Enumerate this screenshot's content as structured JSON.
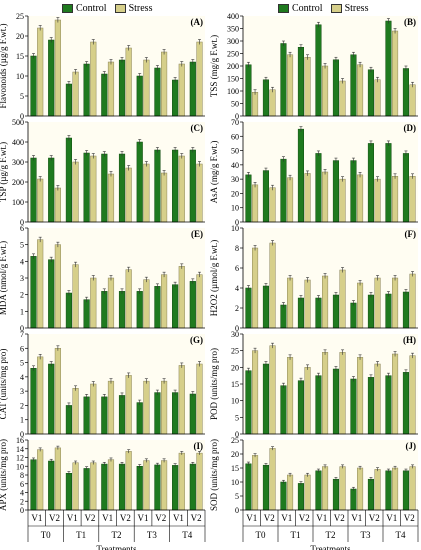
{
  "legend": {
    "items": [
      {
        "label": "Control",
        "color": "#1f7a1f"
      },
      {
        "label": "Stress",
        "color": "#d6cf8a"
      }
    ]
  },
  "groups": [
    "T0",
    "T1",
    "T2",
    "T3",
    "T4"
  ],
  "cultivars": [
    "V1",
    "V2"
  ],
  "xlabel": "Treatments",
  "chart_data": [
    {
      "type": "bar",
      "panel": "(A)",
      "ylabel": "Flavonoids (µg/g F.wt.)",
      "ylim": [
        0,
        25
      ],
      "yticks": [
        0,
        5,
        10,
        15,
        20,
        25
      ],
      "categories": [
        "T0-V1",
        "T0-V2",
        "T1-V1",
        "T1-V2",
        "T2-V1",
        "T2-V2",
        "T3-V1",
        "T3-V2",
        "T4-V1",
        "T4-V2"
      ],
      "series": [
        {
          "name": "Control",
          "values": [
            15,
            19,
            8,
            13,
            10.5,
            14,
            10,
            12,
            9,
            13.5
          ]
        },
        {
          "name": "Stress",
          "values": [
            22,
            24,
            11,
            18.5,
            13.5,
            17,
            14,
            16,
            13,
            18.5
          ]
        }
      ]
    },
    {
      "type": "bar",
      "panel": "(B)",
      "ylabel": "TSS (mg/g F.wt.)",
      "ylim": [
        0,
        400
      ],
      "yticks": [
        0,
        50,
        100,
        150,
        200,
        250,
        300,
        350,
        400
      ],
      "categories": [
        "T0-V1",
        "T0-V2",
        "T1-V1",
        "T1-V2",
        "T2-V1",
        "T2-V2",
        "T3-V1",
        "T3-V2",
        "T4-V1",
        "T4-V2"
      ],
      "series": [
        {
          "name": "Control",
          "values": [
            205,
            145,
            290,
            275,
            365,
            225,
            245,
            185,
            380,
            190
          ]
        },
        {
          "name": "Stress",
          "values": [
            95,
            105,
            245,
            235,
            200,
            140,
            205,
            145,
            340,
            125
          ]
        }
      ]
    },
    {
      "type": "bar",
      "panel": "(C)",
      "ylabel": "TSP (µg/g F.wt.)",
      "ylim": [
        0,
        500
      ],
      "yticks": [
        0,
        100,
        200,
        300,
        400,
        500
      ],
      "categories": [
        "T0-V1",
        "T0-V2",
        "T1-V1",
        "T1-V2",
        "T2-V1",
        "T2-V2",
        "T3-V1",
        "T3-V2",
        "T4-V1",
        "T4-V2"
      ],
      "series": [
        {
          "name": "Control",
          "values": [
            320,
            320,
            420,
            345,
            340,
            340,
            400,
            360,
            360,
            360
          ]
        },
        {
          "name": "Stress",
          "values": [
            215,
            170,
            300,
            330,
            240,
            270,
            290,
            245,
            330,
            290
          ]
        }
      ]
    },
    {
      "type": "bar",
      "panel": "(D)",
      "ylabel": "AsA (mg/g F.wt.)",
      "ylim": [
        0,
        70
      ],
      "yticks": [
        0,
        10,
        20,
        30,
        40,
        50,
        60,
        70
      ],
      "categories": [
        "T0-V1",
        "T0-V2",
        "T1-V1",
        "T1-V2",
        "T2-V1",
        "T2-V2",
        "T3-V1",
        "T3-V2",
        "T4-V1",
        "T4-V2"
      ],
      "series": [
        {
          "name": "Control",
          "values": [
            33,
            36,
            44,
            65,
            48,
            43,
            43,
            55,
            55,
            48
          ]
        },
        {
          "name": "Stress",
          "values": [
            26,
            24,
            31,
            34,
            35,
            30,
            33,
            30,
            32,
            32
          ]
        }
      ]
    },
    {
      "type": "bar",
      "panel": "(E)",
      "ylabel": "MDA (nmol/g F.wt.)",
      "ylim": [
        0,
        6
      ],
      "yticks": [
        0,
        1,
        2,
        3,
        4,
        5,
        6
      ],
      "categories": [
        "T0-V1",
        "T0-V2",
        "T1-V1",
        "T1-V2",
        "T2-V1",
        "T2-V2",
        "T3-V1",
        "T3-V2",
        "T4-V1",
        "T4-V2"
      ],
      "series": [
        {
          "name": "Control",
          "values": [
            4.3,
            4.1,
            2.1,
            1.7,
            2.2,
            2.2,
            2.2,
            2.5,
            2.6,
            2.8
          ]
        },
        {
          "name": "Stress",
          "values": [
            5.3,
            5.0,
            3.8,
            3.0,
            3.0,
            3.5,
            2.9,
            3.2,
            3.7,
            3.2
          ]
        }
      ]
    },
    {
      "type": "bar",
      "panel": "(F)",
      "ylabel": "H2O2 (µmol/g F.wt.)",
      "ylim": [
        0,
        10
      ],
      "yticks": [
        0,
        2,
        4,
        6,
        8,
        10
      ],
      "categories": [
        "T0-V1",
        "T0-V2",
        "T1-V1",
        "T1-V2",
        "T2-V1",
        "T2-V2",
        "T3-V1",
        "T3-V2",
        "T4-V1",
        "T4-V2"
      ],
      "series": [
        {
          "name": "Control",
          "values": [
            4,
            4.2,
            2.3,
            3,
            3,
            3.3,
            2.5,
            3.3,
            3.4,
            3.6
          ]
        },
        {
          "name": "Stress",
          "values": [
            8,
            8.5,
            5,
            4.8,
            5.2,
            5.8,
            4.5,
            5,
            5,
            5.4
          ]
        }
      ]
    },
    {
      "type": "bar",
      "panel": "(G)",
      "ylabel": "CAT (units/mg pro)",
      "ylim": [
        0,
        7
      ],
      "yticks": [
        0,
        1,
        2,
        3,
        4,
        5,
        6,
        7
      ],
      "categories": [
        "T0-V1",
        "T0-V2",
        "T1-V1",
        "T1-V2",
        "T2-V1",
        "T2-V2",
        "T3-V1",
        "T3-V2",
        "T4-V1",
        "T4-V2"
      ],
      "series": [
        {
          "name": "Control",
          "values": [
            4.6,
            4.9,
            2.0,
            2.6,
            2.6,
            2.7,
            2.2,
            2.9,
            2.9,
            2.8
          ]
        },
        {
          "name": "Stress",
          "values": [
            5.4,
            6.0,
            3.2,
            3.5,
            3.7,
            4.1,
            3.7,
            3.7,
            4.8,
            4.9
          ]
        }
      ]
    },
    {
      "type": "bar",
      "panel": "(H)",
      "ylabel": "POD (units/mg pro)",
      "ylim": [
        0,
        30
      ],
      "yticks": [
        0,
        5,
        10,
        15,
        20,
        25,
        30
      ],
      "categories": [
        "T0-V1",
        "T0-V2",
        "T1-V1",
        "T1-V2",
        "T2-V1",
        "T2-V2",
        "T3-V1",
        "T3-V2",
        "T4-V1",
        "T4-V2"
      ],
      "series": [
        {
          "name": "Control",
          "values": [
            19,
            21,
            14.5,
            16,
            17.5,
            19.5,
            16.5,
            17,
            17.5,
            18.5
          ]
        },
        {
          "name": "Stress",
          "values": [
            25,
            26.5,
            23,
            20,
            24.5,
            24.5,
            23,
            21,
            24,
            23.5
          ]
        }
      ]
    },
    {
      "type": "bar",
      "panel": "(I)",
      "ylabel": "APX (units/mg pro)",
      "ylim": [
        0,
        16
      ],
      "yticks": [
        0,
        2,
        4,
        6,
        8,
        10,
        12,
        14,
        16
      ],
      "categories": [
        "T0-V1",
        "T0-V2",
        "T1-V1",
        "T1-V2",
        "T2-V1",
        "T2-V2",
        "T3-V1",
        "T3-V2",
        "T4-V1",
        "T4-V2"
      ],
      "series": [
        {
          "name": "Control",
          "values": [
            11.5,
            11.2,
            8.4,
            9.5,
            10.5,
            10.5,
            10,
            10.3,
            10.2,
            10.5
          ]
        },
        {
          "name": "Stress",
          "values": [
            13.8,
            14.2,
            10.8,
            10.8,
            11.5,
            13.4,
            11.3,
            11.3,
            13,
            13
          ]
        }
      ]
    },
    {
      "type": "bar",
      "panel": "(J)",
      "ylabel": "SOD (units/mg pro)",
      "ylim": [
        0,
        25
      ],
      "yticks": [
        0,
        5,
        10,
        15,
        20,
        25
      ],
      "categories": [
        "T0-V1",
        "T0-V2",
        "T1-V1",
        "T1-V2",
        "T2-V1",
        "T2-V2",
        "T3-V1",
        "T3-V2",
        "T4-V1",
        "T4-V2"
      ],
      "series": [
        {
          "name": "Control",
          "values": [
            16.5,
            16,
            10,
            9.5,
            14,
            11,
            7.5,
            11,
            14,
            14
          ]
        },
        {
          "name": "Stress",
          "values": [
            19.5,
            22,
            12.5,
            12.5,
            15.5,
            15.5,
            15,
            14.5,
            15,
            15.5
          ]
        }
      ]
    }
  ]
}
